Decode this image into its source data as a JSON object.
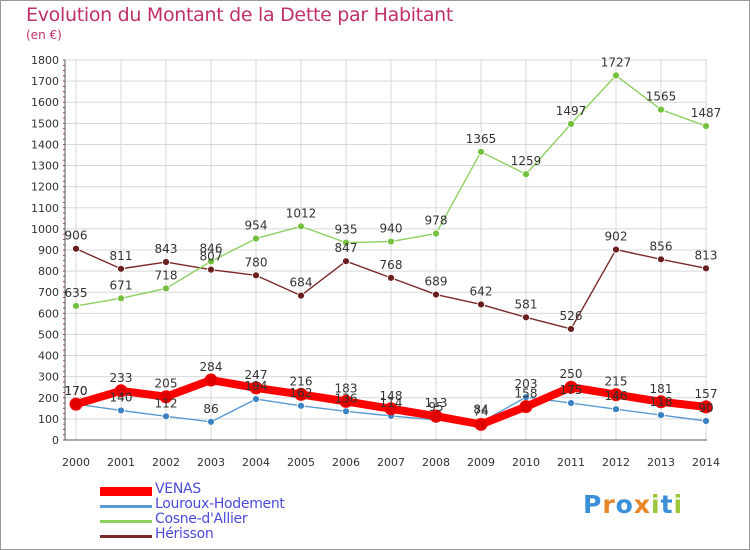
{
  "title": "Evolution du Montant de la Dette par Habitant",
  "subtitle": "(en €)",
  "logo": {
    "text": "Proxiti",
    "letters": [
      {
        "ch": "P",
        "color": "#3a8fd6"
      },
      {
        "ch": "r",
        "color": "#e8862a"
      },
      {
        "ch": "o",
        "color": "#3a8fd6"
      },
      {
        "ch": "x",
        "color": "#e8862a"
      },
      {
        "ch": "i",
        "color": "#9bc83a"
      },
      {
        "ch": "t",
        "color": "#3a8fd6"
      },
      {
        "ch": "i",
        "color": "#9bc83a"
      }
    ]
  },
  "chart_data": {
    "type": "line",
    "x": [
      "2000",
      "2001",
      "2002",
      "2003",
      "2004",
      "2005",
      "2006",
      "2007",
      "2008",
      "2009",
      "2010",
      "2011",
      "2012",
      "2013",
      "2014"
    ],
    "ylim": [
      0,
      1800
    ],
    "yticks": [
      0,
      100,
      200,
      300,
      400,
      500,
      600,
      700,
      800,
      900,
      1000,
      1100,
      1200,
      1300,
      1400,
      1500,
      1600,
      1700,
      1800
    ],
    "grid": true,
    "legend_position": "bottom-left",
    "series": [
      {
        "name": "VENAS",
        "color": "#ff0000",
        "marker": "#e00000",
        "values": [
          170,
          233,
          205,
          284,
          247,
          216,
          183,
          148,
          113,
          74,
          158,
          250,
          215,
          181,
          157
        ]
      },
      {
        "name": "Louroux-Hodement",
        "color": "#5a9ad0",
        "marker": "#3b82c4",
        "values": [
          170,
          140,
          112,
          86,
          194,
          162,
          136,
          114,
          95,
          84,
          203,
          175,
          146,
          118,
          90
        ]
      },
      {
        "name": "Cosne-d'Allier",
        "color": "#8dd060",
        "marker": "#72c03c",
        "values": [
          635,
          671,
          718,
          846,
          954,
          1012,
          935,
          940,
          978,
          1365,
          1259,
          1497,
          1727,
          1565,
          1487
        ]
      },
      {
        "name": "Hérisson",
        "color": "#7a2a2a",
        "marker": "#6a1e1e",
        "values": [
          906,
          811,
          843,
          807,
          780,
          684,
          847,
          768,
          689,
          642,
          581,
          526,
          902,
          856,
          813
        ]
      }
    ],
    "data_labels": [
      [
        "170",
        "233",
        "205",
        "284",
        "247",
        "216",
        "183",
        "148",
        "113",
        "74",
        "158",
        "250",
        "215",
        "181",
        "157"
      ],
      [
        "170",
        "140",
        "112",
        "86",
        "194",
        "162",
        "136",
        "114",
        "95",
        "84",
        "203",
        "175",
        "146",
        "118",
        "90"
      ],
      [
        "635",
        "671",
        "718",
        "846",
        "954",
        "1012",
        "935",
        "940",
        "978",
        "1365",
        "1259",
        "1497",
        "1727",
        "1565",
        "1487"
      ],
      [
        "906",
        "811",
        "843",
        "807",
        "780",
        "684",
        "847",
        "768",
        "689",
        "642",
        "581",
        "526",
        "902",
        "856",
        "813"
      ]
    ]
  }
}
